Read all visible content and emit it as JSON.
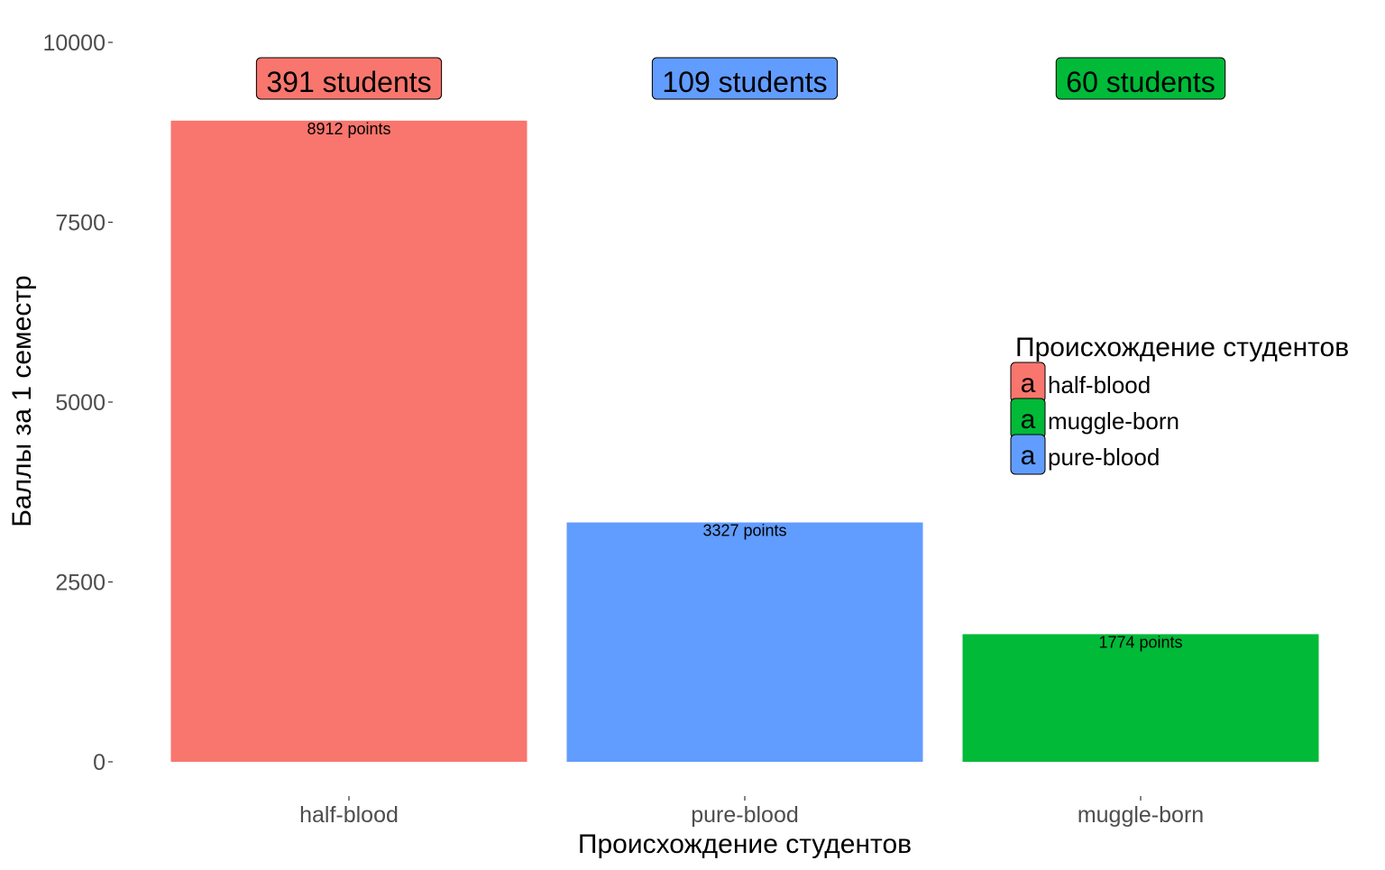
{
  "chart_data": {
    "type": "bar",
    "categories": [
      "half-blood",
      "pure-blood",
      "muggle-born"
    ],
    "values": [
      8912,
      3327,
      1774
    ],
    "colors": [
      "#F8766D",
      "#619CFF",
      "#00BA38"
    ],
    "value_labels": [
      "8912 points",
      "3327 points",
      "1774 points"
    ],
    "count_labels": [
      "391 students",
      "109 students",
      "60 students"
    ],
    "xlabel": "Происхождение студентов",
    "ylabel": "Баллы за 1 семестр",
    "ylim": [
      0,
      10000
    ],
    "y_ticks": [
      0,
      2500,
      5000,
      7500,
      10000
    ],
    "grid": false,
    "legend": {
      "title": "Происхождение студентов",
      "placement": "right",
      "key_glyph": "a",
      "items": [
        {
          "label": "half-blood",
          "color": "#F8766D"
        },
        {
          "label": "muggle-born",
          "color": "#00BA38"
        },
        {
          "label": "pure-blood",
          "color": "#619CFF"
        }
      ]
    }
  }
}
